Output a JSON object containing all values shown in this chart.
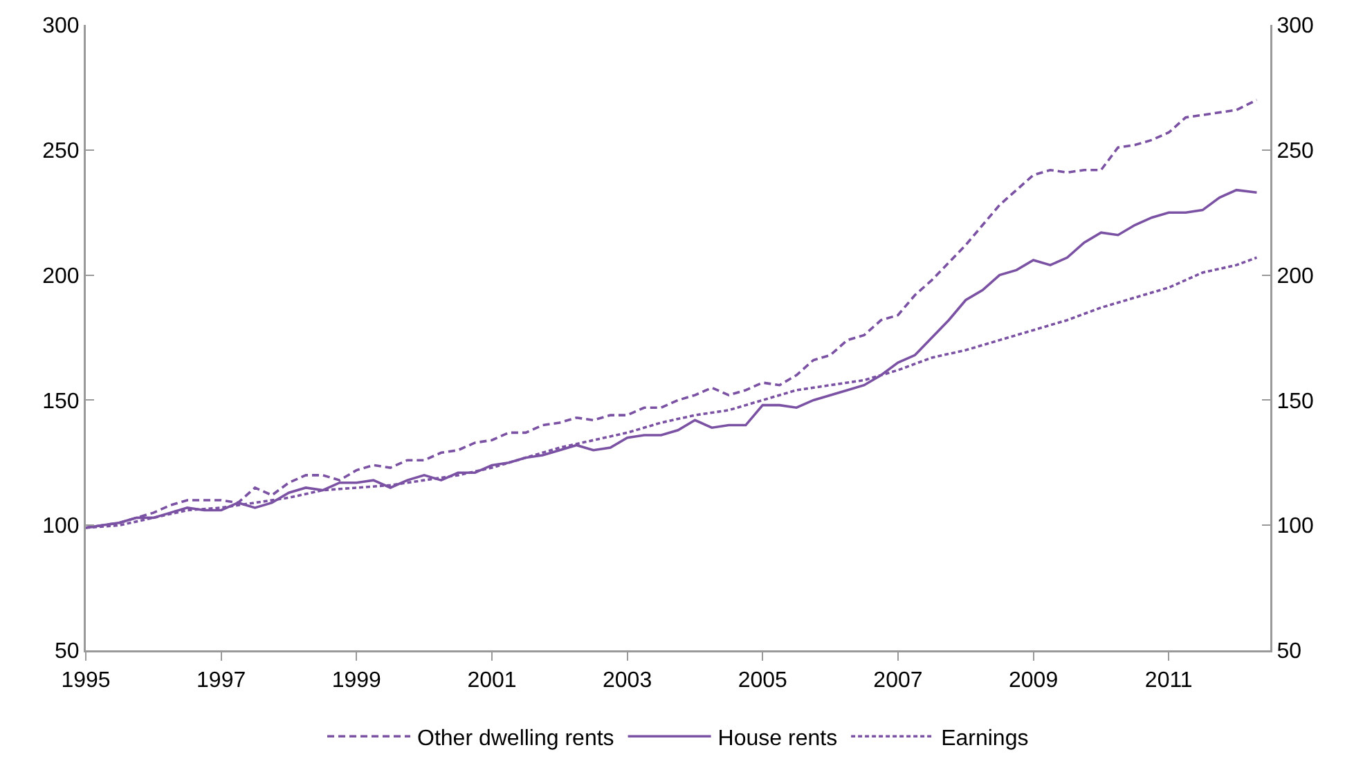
{
  "chart_data": {
    "type": "line",
    "xlim": [
      1995,
      2012.5
    ],
    "xticks": [
      1995,
      1997,
      1999,
      2001,
      2003,
      2005,
      2007,
      2009,
      2011
    ],
    "ylim": [
      50,
      300
    ],
    "yticks": [
      50,
      100,
      150,
      200,
      250,
      300
    ],
    "y2lim": [
      50,
      300
    ],
    "y2ticks": [
      50,
      100,
      150,
      200,
      250,
      300
    ],
    "grid": false,
    "legend": "bottom",
    "marker": "none",
    "series": [
      {
        "name": "Other dwelling rents",
        "color": "#7b52a3",
        "line_style": "dashed",
        "x": [
          1995,
          1995.5,
          1996,
          1996.25,
          1996.5,
          1997,
          1997.25,
          1997.5,
          1997.75,
          1998,
          1998.25,
          1998.5,
          1998.75,
          1999,
          1999.25,
          1999.5,
          1999.75,
          2000,
          2000.25,
          2000.5,
          2000.75,
          2001,
          2001.25,
          2001.5,
          2001.75,
          2002,
          2002.25,
          2002.5,
          2002.75,
          2003,
          2003.25,
          2003.5,
          2003.75,
          2004,
          2004.25,
          2004.5,
          2004.75,
          2005,
          2005.25,
          2005.5,
          2005.75,
          2006,
          2006.25,
          2006.5,
          2006.75,
          2007,
          2007.25,
          2007.5,
          2007.75,
          2008,
          2008.25,
          2008.5,
          2008.75,
          2009,
          2009.25,
          2009.5,
          2009.75,
          2010,
          2010.25,
          2010.5,
          2010.75,
          2011,
          2011.25,
          2011.5,
          2011.75,
          2012,
          2012.3
        ],
        "values": [
          99,
          101,
          105,
          108,
          110,
          110,
          109,
          115,
          112,
          117,
          120,
          120,
          118,
          122,
          124,
          123,
          126,
          126,
          129,
          130,
          133,
          134,
          137,
          137,
          140,
          141,
          143,
          142,
          144,
          144,
          147,
          147,
          150,
          152,
          155,
          152,
          154,
          157,
          156,
          160,
          166,
          168,
          174,
          176,
          182,
          184,
          192,
          198,
          205,
          212,
          220,
          228,
          234,
          240,
          242,
          241,
          242,
          242,
          251,
          252,
          254,
          257,
          263,
          264,
          265,
          266,
          270
        ]
      },
      {
        "name": "House rents",
        "color": "#7b52a3",
        "line_style": "solid",
        "x": [
          1995,
          1995.5,
          1995.75,
          1996,
          1996.25,
          1996.5,
          1996.75,
          1997,
          1997.25,
          1997.5,
          1997.75,
          1998,
          1998.25,
          1998.5,
          1998.75,
          1999,
          1999.25,
          1999.5,
          1999.75,
          2000,
          2000.25,
          2000.5,
          2000.75,
          2001,
          2001.25,
          2001.5,
          2001.75,
          2002,
          2002.25,
          2002.5,
          2002.75,
          2003,
          2003.25,
          2003.5,
          2003.75,
          2004,
          2004.25,
          2004.5,
          2004.75,
          2005,
          2005.25,
          2005.5,
          2005.75,
          2006,
          2006.25,
          2006.5,
          2006.75,
          2007,
          2007.25,
          2007.5,
          2007.75,
          2008,
          2008.25,
          2008.5,
          2008.75,
          2009,
          2009.25,
          2009.5,
          2009.75,
          2010,
          2010.25,
          2010.5,
          2010.75,
          2011,
          2011.25,
          2011.5,
          2011.75,
          2012,
          2012.3
        ],
        "values": [
          99,
          101,
          103,
          103,
          105,
          107,
          106,
          106,
          109,
          107,
          109,
          113,
          115,
          114,
          117,
          117,
          118,
          115,
          118,
          120,
          118,
          121,
          121,
          124,
          125,
          127,
          128,
          130,
          132,
          130,
          131,
          135,
          136,
          136,
          138,
          142,
          139,
          140,
          140,
          148,
          148,
          147,
          150,
          152,
          154,
          156,
          160,
          165,
          168,
          175,
          182,
          190,
          194,
          200,
          202,
          206,
          204,
          207,
          213,
          217,
          216,
          220,
          223,
          225,
          225,
          226,
          231,
          234,
          233
        ]
      },
      {
        "name": "Earnings",
        "color": "#7b52a3",
        "line_style": "dotted",
        "x": [
          1995,
          1995.5,
          1996,
          1996.5,
          1997,
          1997.5,
          1998,
          1998.5,
          1999,
          1999.5,
          2000,
          2000.5,
          2001,
          2001.5,
          2002,
          2002.5,
          2003,
          2003.5,
          2004,
          2004.5,
          2005,
          2005.5,
          2006,
          2006.5,
          2007,
          2007.5,
          2008,
          2008.5,
          2009,
          2009.5,
          2010,
          2010.5,
          2011,
          2011.5,
          2012,
          2012.3
        ],
        "values": [
          99,
          100,
          103,
          106,
          107,
          109,
          111,
          114,
          115,
          116,
          118,
          120,
          123,
          127,
          131,
          134,
          137,
          141,
          144,
          146,
          150,
          154,
          156,
          158,
          162,
          167,
          170,
          174,
          178,
          182,
          187,
          191,
          195,
          201,
          204,
          207
        ]
      }
    ]
  }
}
